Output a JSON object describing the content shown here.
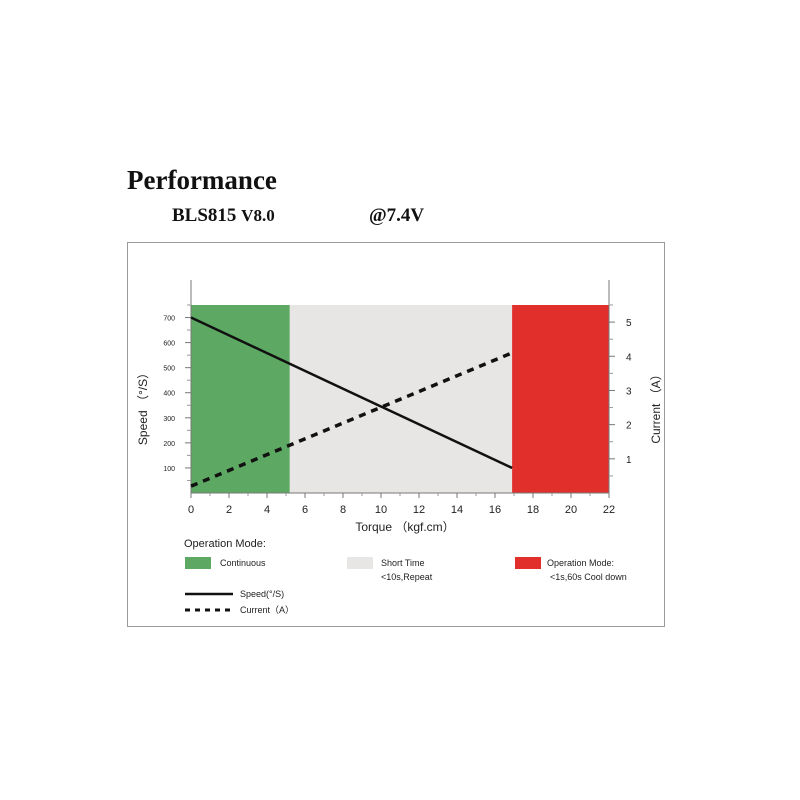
{
  "header": {
    "title": "Performance",
    "model": "BLS815",
    "version": "V8.0",
    "voltage": "@7.4V"
  },
  "chart_data": {
    "type": "line",
    "xlabel": "Torque （kgf.cm）",
    "ylabel_left": "Speed （°/S）",
    "ylabel_right": "Current （A）",
    "xlim": [
      0,
      22
    ],
    "ylim_left": [
      0,
      750
    ],
    "ylim_right": [
      0,
      5.5
    ],
    "x_ticks": [
      0,
      2,
      4,
      6,
      8,
      10,
      12,
      14,
      16,
      18,
      20,
      22
    ],
    "y_left_ticks": [
      100,
      200,
      300,
      400,
      500,
      600,
      700
    ],
    "y_right_ticks": [
      1,
      2,
      3,
      4,
      5
    ],
    "regions": [
      {
        "mode": "continuous",
        "from": 0,
        "to": 5.2,
        "color": "#5da862"
      },
      {
        "mode": "short_time",
        "from": 5.2,
        "to": 16.9,
        "color": "#e8e6e4"
      },
      {
        "mode": "cool_down",
        "from": 16.9,
        "to": 22,
        "color": "#e1302b"
      }
    ],
    "series": [
      {
        "name": "Speed(°/S)",
        "axis": "left",
        "style": "solid",
        "x": [
          0,
          16.9
        ],
        "y": [
          700,
          100
        ]
      },
      {
        "name": "Current（A）",
        "axis": "right",
        "style": "dashed",
        "x": [
          0,
          16.9
        ],
        "y": [
          0.2,
          4.1
        ]
      }
    ]
  },
  "legend": {
    "heading": "Operation Mode:",
    "continuous": "Continuous",
    "short_time_line1": "Short Time",
    "short_time_line2": "<10s,Repeat",
    "cool_down_line1": "Operation Mode:",
    "cool_down_line2": "<1s,60s Cool down",
    "speed": "Speed(°/S)",
    "current": "Current（A）"
  },
  "colors": {
    "continuous": "#5da862",
    "short_time": "#e8e6e4",
    "cool_down": "#e1302b",
    "line": "#111111"
  }
}
